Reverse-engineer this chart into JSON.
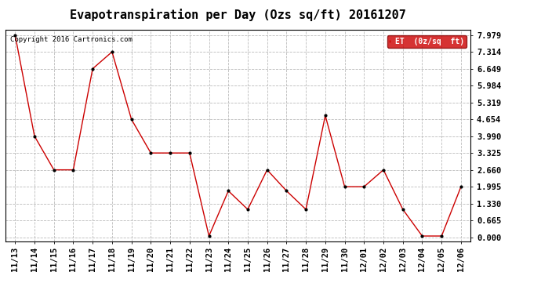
{
  "title": "Evapotranspiration per Day (Ozs sq/ft) 20161207",
  "copyright_text": "Copyright 2016 Cartronics.com",
  "legend_label": "ET  (0z/sq  ft)",
  "x_labels": [
    "11/13",
    "11/14",
    "11/15",
    "11/16",
    "11/17",
    "11/18",
    "11/19",
    "11/20",
    "11/21",
    "11/22",
    "11/23",
    "11/24",
    "11/25",
    "11/26",
    "11/27",
    "11/28",
    "11/29",
    "11/30",
    "12/01",
    "12/02",
    "12/03",
    "12/04",
    "12/05",
    "12/06"
  ],
  "y_values": [
    7.979,
    3.99,
    2.66,
    2.66,
    6.649,
    7.314,
    4.654,
    3.325,
    3.325,
    3.325,
    0.05,
    1.83,
    1.1,
    2.66,
    1.83,
    1.1,
    4.8,
    1.995,
    1.995,
    2.66,
    1.1,
    0.05,
    0.05,
    1.995
  ],
  "y_ticks": [
    0.0,
    0.665,
    1.33,
    1.995,
    2.66,
    3.325,
    3.99,
    4.654,
    5.319,
    5.984,
    6.649,
    7.314,
    7.979
  ],
  "line_color": "#cc0000",
  "marker_color": "#000000",
  "bg_color": "#ffffff",
  "grid_color": "#bbbbbb",
  "legend_bg": "#cc0000",
  "legend_text_color": "#ffffff",
  "title_fontsize": 11,
  "tick_fontsize": 7.5,
  "copyright_fontsize": 6.5,
  "ylim_min": -0.15,
  "ylim_max": 8.2
}
